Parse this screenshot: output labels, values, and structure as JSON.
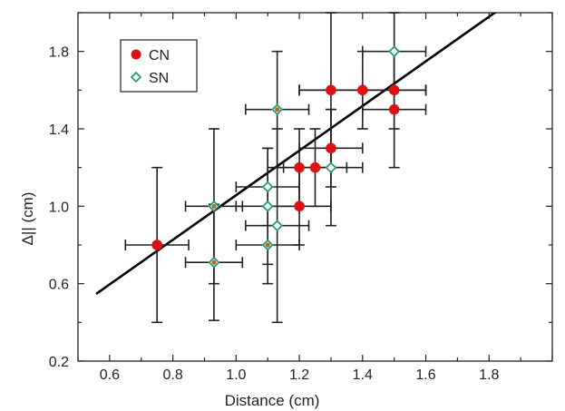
{
  "chart_data": {
    "type": "scatter",
    "xlabel": "Distance (cm)",
    "ylabel": "Δ|| (cm)",
    "xlim": [
      0.5,
      2.0
    ],
    "ylim": [
      0.2,
      2.0
    ],
    "x_ticks": [
      "0.6",
      "0.8",
      "1.0",
      "1.2",
      "1.4",
      "1.6",
      "1.8"
    ],
    "y_ticks": [
      "0.2",
      "0.6",
      "1.0",
      "1.4",
      "1.8"
    ],
    "grid": false,
    "legend_position": "top-left",
    "colors": {
      "CN": "#dd1111",
      "SN": "#1f9a6a",
      "SN_overlap": "#9b6a2c",
      "fit": "#000000"
    },
    "series": [
      {
        "name": "CN",
        "marker": "circle",
        "points": [
          {
            "x": 0.75,
            "y": 0.8,
            "xerr": 0.1,
            "yerr": 0.4
          },
          {
            "x": 1.2,
            "y": 1.0,
            "xerr": 0.1,
            "yerr": 0.2
          },
          {
            "x": 1.2,
            "y": 1.2,
            "xerr": 0.1,
            "yerr": 0.2
          },
          {
            "x": 1.25,
            "y": 1.2,
            "xerr": 0.1,
            "yerr": 0.2
          },
          {
            "x": 1.3,
            "y": 1.3,
            "xerr": 0.1,
            "yerr": 0.2
          },
          {
            "x": 1.3,
            "y": 1.6,
            "xerr": 0.1,
            "yerr": 0.4
          },
          {
            "x": 1.4,
            "y": 1.6,
            "xerr": 0.2,
            "yerr": 0.2
          },
          {
            "x": 1.5,
            "y": 1.6,
            "xerr": 0.1,
            "yerr": 0.2
          },
          {
            "x": 1.5,
            "y": 1.5,
            "xerr": 0.1,
            "yerr": 0.3
          }
        ]
      },
      {
        "name": "SN",
        "marker": "diamond",
        "points": [
          {
            "x": 0.93,
            "y": 1.0,
            "xerr": 0.09,
            "yerr": 0.4
          },
          {
            "x": 0.93,
            "y": 0.71,
            "xerr": 0.09,
            "yerr": 0.3
          },
          {
            "x": 1.1,
            "y": 1.1,
            "xerr": 0.1,
            "yerr": 0.2
          },
          {
            "x": 1.1,
            "y": 1.0,
            "xerr": 0.1,
            "yerr": 0.3
          },
          {
            "x": 1.1,
            "y": 0.8,
            "xerr": 0.1,
            "yerr": 0.2
          },
          {
            "x": 1.13,
            "y": 1.5,
            "xerr": 0.1,
            "yerr": 0.3
          },
          {
            "x": 1.13,
            "y": 0.9,
            "xerr": 0.1,
            "yerr": 0.5
          },
          {
            "x": 1.3,
            "y": 1.2,
            "xerr": 0.1,
            "yerr": 0.3
          },
          {
            "x": 1.5,
            "y": 1.8,
            "xerr": 0.1,
            "yerr": 0.2
          }
        ]
      }
    ],
    "fit_line": {
      "x": [
        0.56,
        1.87
      ],
      "y": [
        0.55,
        2.06
      ]
    }
  }
}
